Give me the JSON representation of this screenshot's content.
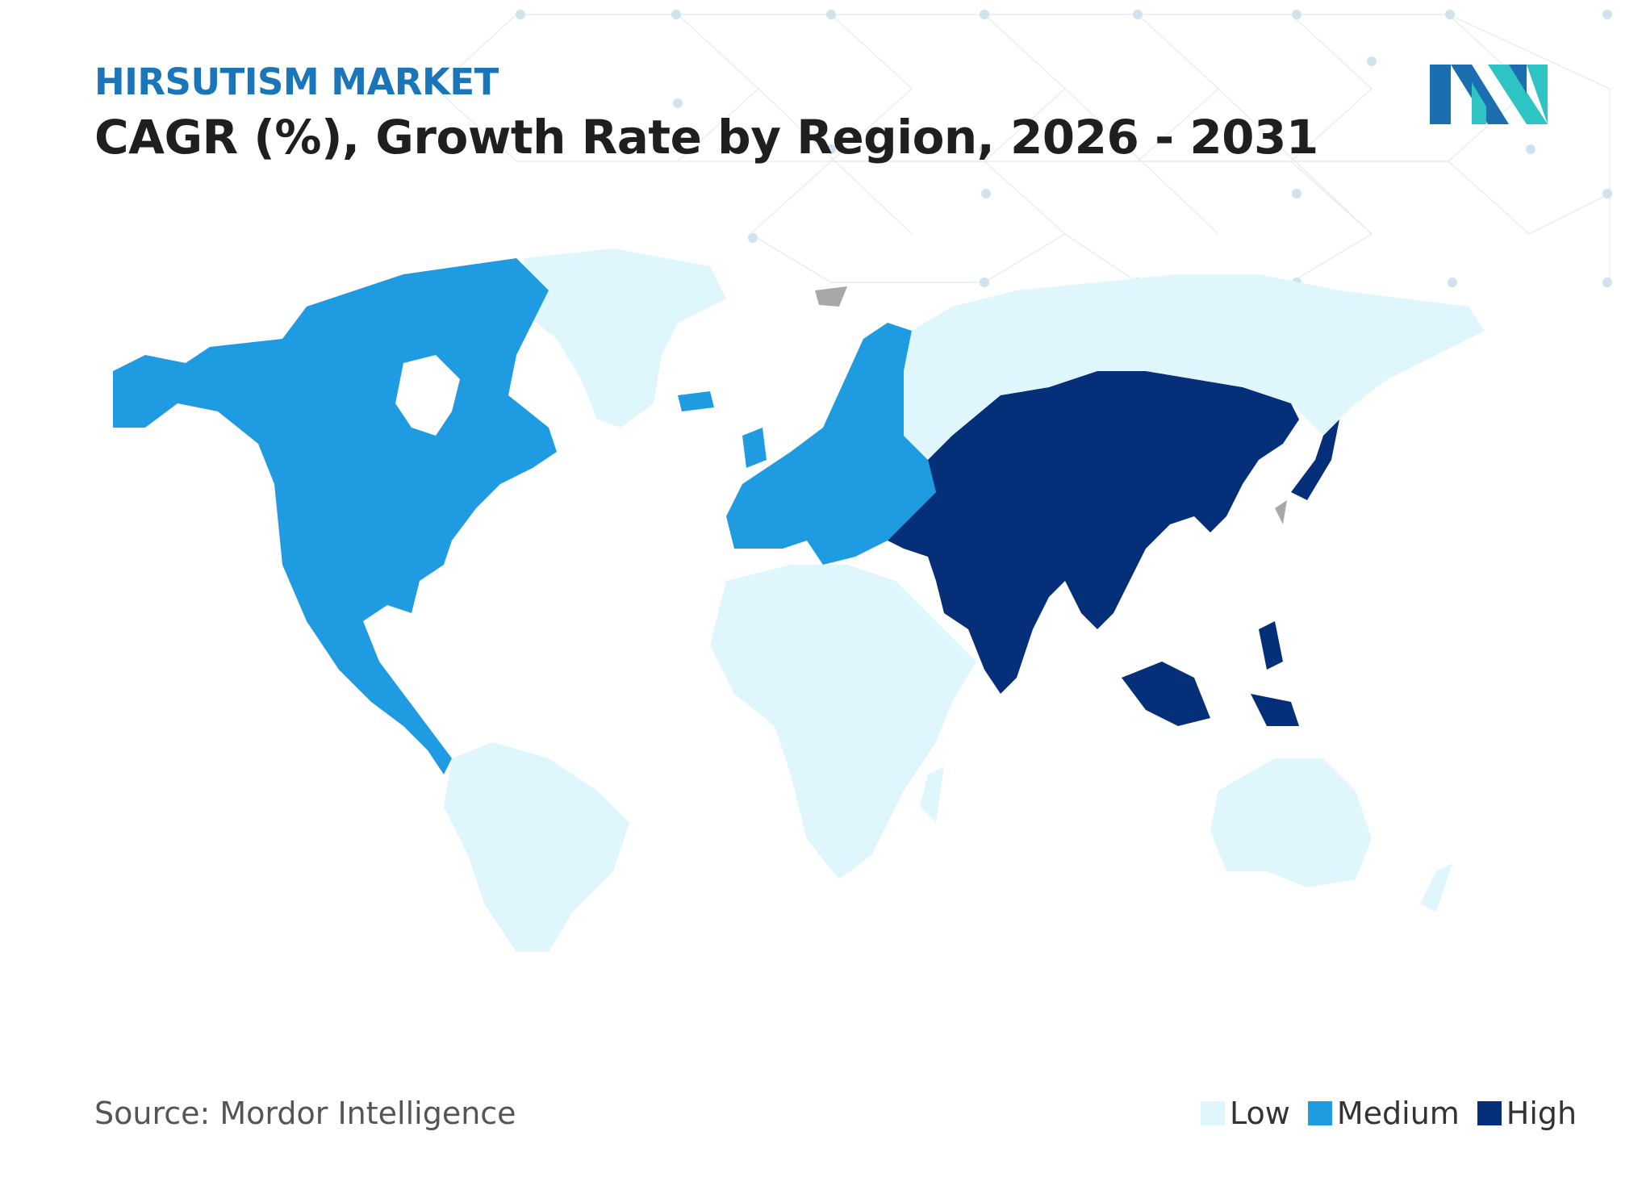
{
  "header": {
    "kicker": "HIRSUTISM MARKET",
    "title": "CAGR (%), Growth Rate by Region, 2026 - 2031"
  },
  "footer": {
    "source": "Source: Mordor Intelligence"
  },
  "legend": [
    {
      "label": "Low",
      "color": "#dff6fd"
    },
    {
      "label": "Medium",
      "color": "#1e9be1"
    },
    {
      "label": "High",
      "color": "#062f7a"
    }
  ],
  "colors": {
    "low": "#dff6fd",
    "medium": "#1e9be1",
    "high": "#062f7a",
    "no_data": "#a8a8a8",
    "logo_dark": "#1b6fb0",
    "logo_teal": "#2ec4c4"
  },
  "regions": [
    {
      "name": "North America",
      "level": "Medium"
    },
    {
      "name": "Europe",
      "level": "Medium"
    },
    {
      "name": "Asia Pacific",
      "level": "High"
    },
    {
      "name": "Middle East",
      "level": "High"
    },
    {
      "name": "South America",
      "level": "Low"
    },
    {
      "name": "Africa",
      "level": "Low"
    },
    {
      "name": "Russia",
      "level": "Low"
    },
    {
      "name": "Greenland",
      "level": "Low"
    },
    {
      "name": "Australia",
      "level": "Low"
    }
  ]
}
